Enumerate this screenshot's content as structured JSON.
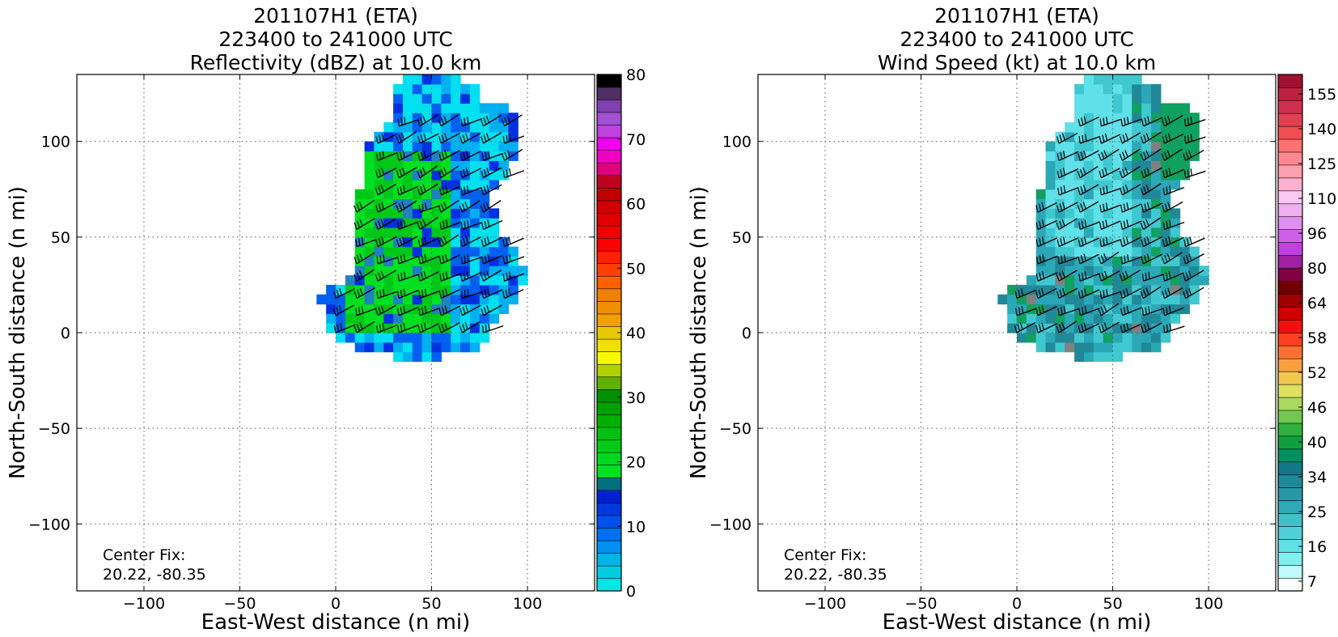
{
  "chart_data": [
    {
      "type": "heatmap",
      "title_lines": [
        "201107H1 (ETA)",
        "223400 to 241000 UTC",
        "Reflectivity (dBZ) at 10.0 km"
      ],
      "xlabel": "East-West distance (n mi)",
      "ylabel": "North-South distance (n mi)",
      "xlim": [
        -135,
        135
      ],
      "ylim": [
        -135,
        135
      ],
      "xticks": [
        -100,
        -50,
        0,
        50,
        100
      ],
      "yticks": [
        -100,
        -50,
        0,
        50,
        100
      ],
      "xtick_labels": [
        "−100",
        "−50",
        "0",
        "50",
        "100"
      ],
      "ytick_labels": [
        "−100",
        "−50",
        "0",
        "50",
        "100"
      ],
      "grid": true,
      "center_fix_label": "Center Fix:",
      "center_fix_value": "20.22, -80.35",
      "colorbar": {
        "min": 0,
        "max": 80,
        "ticks": [
          0,
          10,
          20,
          30,
          40,
          50,
          60,
          70,
          80
        ],
        "tick_labels": [
          "0",
          "10",
          "20",
          "30",
          "40",
          "50",
          "60",
          "70",
          "80"
        ],
        "colors": [
          "#00e5e5",
          "#00cde0",
          "#00b4e8",
          "#0090f0",
          "#0070f0",
          "#0050ee",
          "#0038e0",
          "#0020d0",
          "#007080",
          "#00e020",
          "#00d820",
          "#00cc18",
          "#00c010",
          "#00b000",
          "#00a000",
          "#009000",
          "#60b000",
          "#b0d000",
          "#f8f800",
          "#f0e000",
          "#e8c800",
          "#f0a000",
          "#f09000",
          "#f08000",
          "#ff6000",
          "#ff4000",
          "#ff2000",
          "#ff0000",
          "#f00000",
          "#e00000",
          "#d00000",
          "#c00000",
          "#c00020",
          "#e0007f",
          "#f000c0",
          "#f000f0",
          "#c040e0",
          "#a050d0",
          "#8040b0",
          "#503060",
          "#000000"
        ]
      },
      "field_colors": [
        "#00e0f0",
        "#00b0f0",
        "#0060f0",
        "#0030e0",
        "#00e020",
        "#00c818",
        "#2080c0"
      ]
    },
    {
      "type": "heatmap",
      "title_lines": [
        "201107H1 (ETA)",
        "223400 to 241000 UTC",
        "Wind Speed (kt) at 10.0 km"
      ],
      "xlabel": "East-West distance (n mi)",
      "ylabel": "North-South distance (n mi)",
      "xlim": [
        -135,
        135
      ],
      "ylim": [
        -135,
        135
      ],
      "xticks": [
        -100,
        -50,
        0,
        50,
        100
      ],
      "yticks": [
        -100,
        -50,
        0,
        50,
        100
      ],
      "xtick_labels": [
        "−100",
        "−50",
        "0",
        "50",
        "100"
      ],
      "ytick_labels": [
        "−100",
        "−50",
        "0",
        "50",
        "100"
      ],
      "grid": true,
      "center_fix_label": "Center Fix:",
      "center_fix_value": "20.22, -80.35",
      "colorbar": {
        "tick_labels": [
          "7",
          "16",
          "25",
          "34",
          "40",
          "46",
          "52",
          "58",
          "64",
          "80",
          "96",
          "110",
          "125",
          "140",
          "155"
        ],
        "colors": [
          "#ffffff",
          "#c0fafa",
          "#80f0f0",
          "#60e0e8",
          "#50d0d8",
          "#40c0c8",
          "#30a8b8",
          "#2898a8",
          "#208898",
          "#107888",
          "#009060",
          "#10a040",
          "#30b040",
          "#70c850",
          "#a8d860",
          "#e0e060",
          "#f0c850",
          "#f8a040",
          "#ff7030",
          "#ff4020",
          "#f01010",
          "#d00000",
          "#a00000",
          "#700000",
          "#800040",
          "#a020a0",
          "#c040e0",
          "#d060e8",
          "#e090f0",
          "#f0b0f0",
          "#f8c8f0",
          "#ffb0d0",
          "#ffa0b0",
          "#ff8890",
          "#ff7070",
          "#f05050",
          "#e04050",
          "#d03050",
          "#c02040",
          "#a01030"
        ]
      },
      "field_colors": [
        "#60e0e8",
        "#40c8d0",
        "#2aa8b8",
        "#208898",
        "#10a060",
        "#808080"
      ]
    }
  ]
}
